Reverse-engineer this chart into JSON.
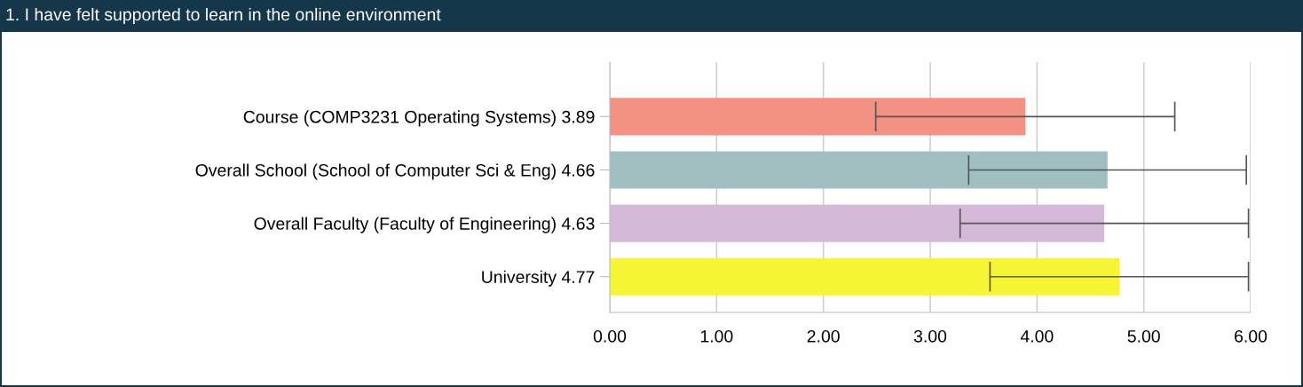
{
  "chart_data": {
    "type": "bar",
    "orientation": "horizontal",
    "title": "1. I have felt supported to learn in the online environment",
    "categories": [
      "Course (COMP3231 Operating Systems) 3.89",
      "Overall School (School of Computer Sci & Eng) 4.66",
      "Overall Faculty (Faculty of Engineering) 4.63",
      "University 4.77"
    ],
    "values": [
      3.89,
      4.66,
      4.63,
      4.77
    ],
    "errors": [
      1.4,
      1.3,
      1.35,
      1.21
    ],
    "colors": [
      "#f39183",
      "#a1bfc1",
      "#d4b9d9",
      "#f5f533"
    ],
    "xlim": [
      0,
      6
    ],
    "xticks": [
      {
        "value": 0,
        "label": "0.00"
      },
      {
        "value": 1,
        "label": "1.00"
      },
      {
        "value": 2,
        "label": "2.00"
      },
      {
        "value": 3,
        "label": "3.00"
      },
      {
        "value": 4,
        "label": "4.00"
      },
      {
        "value": 5,
        "label": "5.00"
      },
      {
        "value": 6,
        "label": "6.00"
      }
    ],
    "grid": "x",
    "legend": false
  }
}
